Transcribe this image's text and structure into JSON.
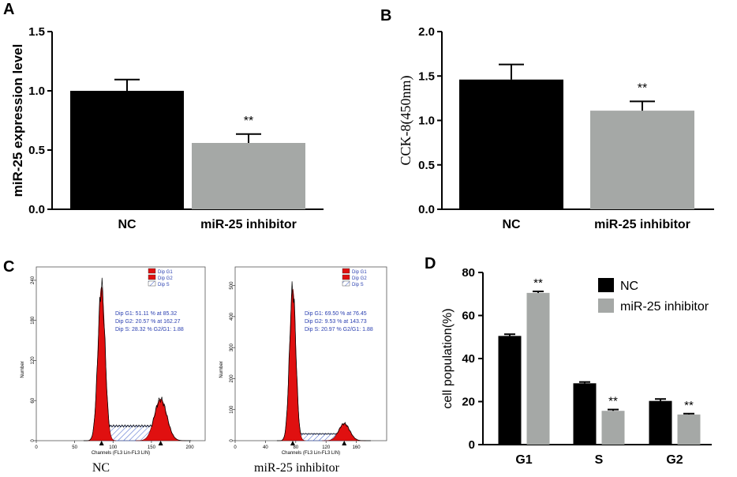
{
  "colors": {
    "nc": "#000000",
    "inhibitor": "#a5a8a6",
    "flow_red": "#e01010",
    "flow_s": "#3f5fc8",
    "stats_blue": "#2a3fb0"
  },
  "chart_data": [
    {
      "panel": "A",
      "type": "bar",
      "categories": [
        "NC",
        "miR-25 inhibitor"
      ],
      "values": [
        1.0,
        0.56
      ],
      "errors": [
        0.095,
        0.075
      ],
      "significance": [
        "",
        "**"
      ],
      "ylabel": "miR-25 expression level",
      "ylim": [
        0,
        1.5
      ],
      "yticks": [
        "0.0",
        "0.5",
        "1.0",
        "1.5"
      ]
    },
    {
      "panel": "B",
      "type": "bar",
      "categories": [
        "NC",
        "miR-25 inhibitor"
      ],
      "values": [
        1.46,
        1.11
      ],
      "errors": [
        0.17,
        0.105
      ],
      "significance": [
        "",
        "**"
      ],
      "ylabel": "CCK-8(450nm)",
      "ylim": [
        0,
        2.0
      ],
      "yticks": [
        "0.0",
        "0.5",
        "1.0",
        "1.5",
        "2.0"
      ]
    },
    {
      "panel": "D",
      "type": "bar",
      "categories": [
        "G1",
        "S",
        "G2"
      ],
      "series": [
        {
          "name": "NC",
          "values": [
            50.5,
            28.5,
            20.3
          ],
          "errors": [
            0.8,
            0.6,
            0.9
          ]
        },
        {
          "name": "miR-25 inhibitor",
          "values": [
            70.5,
            15.7,
            14.0
          ],
          "errors": [
            0.7,
            0.6,
            0.4
          ]
        }
      ],
      "significance": [
        "**",
        "**",
        "**"
      ],
      "ylabel": "cell population(%)",
      "ylim": [
        0,
        80
      ],
      "yticks": [
        "0",
        "20",
        "40",
        "60",
        "80"
      ],
      "legend": "top-right"
    }
  ],
  "panel_c": {
    "label": "C",
    "histograms": [
      {
        "caption": "NC",
        "xlabel": "Channels (FL3 Lin-FL3 LIN)",
        "ylabel": "Number",
        "xticks": [
          "0",
          "50",
          "100",
          "150",
          "200"
        ],
        "yticks": [
          "0",
          "60",
          "120",
          "180",
          "240"
        ],
        "legend": [
          "Dip G1",
          "Dip G2",
          "Dip S"
        ],
        "stats": [
          "Dip G1: 51.11 % at 85.32",
          "Dip G2: 20.57 % at 162.27",
          "Dip S: 28.32 %   G2/G1: 1.88"
        ],
        "g1_peak": 85,
        "g2_peak": 162,
        "g1_height": 230,
        "g2_height": 62,
        "s_level": 22,
        "ymax": 260,
        "xmax": 220
      },
      {
        "caption": "miR-25 inhibitor",
        "xlabel": "Channels (FL3 Lin-FL3 LIN)",
        "ylabel": "Number",
        "xticks": [
          "0",
          "40",
          "80",
          "120",
          "160"
        ],
        "yticks": [
          "0",
          "100",
          "200",
          "300",
          "400",
          "500"
        ],
        "legend": [
          "Dip G1",
          "Dip G2",
          "Dip S"
        ],
        "stats": [
          "Dip G1: 69.50 % at 76.45",
          "Dip G2: 9.53 % at 143.73",
          "Dip S: 20.97 %   G2/G1: 1.88"
        ],
        "g1_peak": 76,
        "g2_peak": 144,
        "g1_height": 490,
        "g2_height": 55,
        "s_level": 22,
        "ymax": 560,
        "xmax": 200
      }
    ]
  }
}
